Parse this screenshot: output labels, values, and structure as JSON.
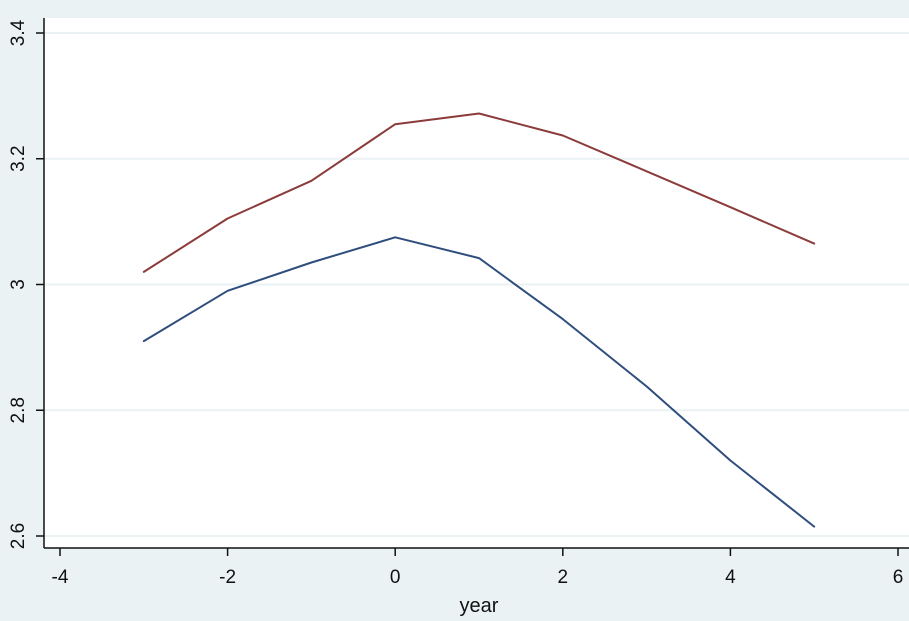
{
  "chart_data": {
    "type": "line",
    "title": "",
    "xlabel": "year",
    "ylabel": "",
    "xlim": [
      -4,
      6
    ],
    "ylim": [
      2.6,
      3.4
    ],
    "xticks": [
      -4,
      -2,
      0,
      2,
      4,
      6
    ],
    "xtick_labels": [
      "-4",
      "-2",
      "0",
      "2",
      "4",
      "6"
    ],
    "yticks": [
      2.6,
      2.8,
      3.0,
      3.2,
      3.4
    ],
    "ytick_labels": [
      "2.6",
      "2.8",
      "3",
      "3.2",
      "3.4"
    ],
    "grid": "horizontal",
    "legend": "none",
    "x": [
      -3,
      -2,
      -1,
      0,
      1,
      2,
      3,
      4,
      5
    ],
    "series": [
      {
        "color": "#8c3b3b",
        "values": [
          3.02,
          3.105,
          3.165,
          3.255,
          3.272,
          3.237,
          3.18,
          3.123,
          3.065
        ]
      },
      {
        "color": "#2f4e7e",
        "values": [
          2.91,
          2.99,
          3.035,
          3.075,
          3.042,
          2.945,
          2.838,
          2.72,
          2.615
        ]
      }
    ],
    "colors": {
      "background": "#eaf2f3",
      "plot_area": "#ffffff",
      "grid": "#eaf2f3",
      "axis": "#111111"
    }
  }
}
